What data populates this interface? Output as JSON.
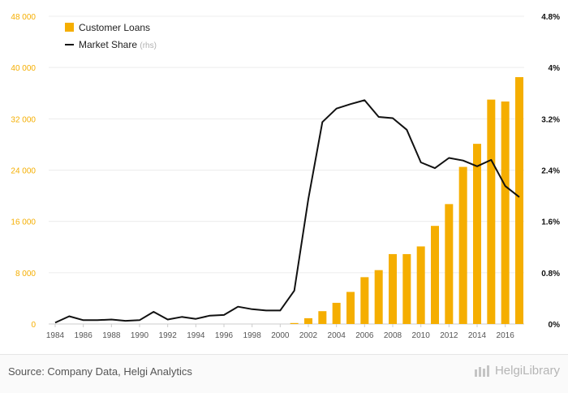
{
  "chart_data": {
    "type": "bar+line",
    "x": [
      1984,
      1985,
      1986,
      1987,
      1988,
      1989,
      1990,
      1991,
      1992,
      1993,
      1994,
      1995,
      1996,
      1997,
      1998,
      1999,
      2000,
      2001,
      2002,
      2003,
      2004,
      2005,
      2006,
      2007,
      2008,
      2009,
      2010,
      2011,
      2012,
      2013,
      2014,
      2015,
      2016,
      2017
    ],
    "x_tick_labels": [
      "1984",
      "1986",
      "1988",
      "1990",
      "1992",
      "1994",
      "1996",
      "1998",
      "2000",
      "2002",
      "2004",
      "2006",
      "2008",
      "2010",
      "2012",
      "2014",
      "2016"
    ],
    "series": [
      {
        "name": "Customer Loans",
        "type": "bar",
        "axis": "left",
        "color": "#f5ae00",
        "values": [
          0,
          0,
          0,
          0,
          0,
          0,
          0,
          0,
          0,
          0,
          0,
          0,
          0,
          0,
          0,
          0,
          0,
          150,
          900,
          2000,
          3300,
          5000,
          7300,
          8400,
          10900,
          10900,
          12100,
          15300,
          18700,
          24500,
          28100,
          35000,
          34700,
          38500
        ]
      },
      {
        "name": "Market Share",
        "name_suffix": "(rhs)",
        "type": "line",
        "axis": "right",
        "color": "#111111",
        "values": [
          0.02,
          0.12,
          0.06,
          0.06,
          0.07,
          0.05,
          0.06,
          0.19,
          0.07,
          0.11,
          0.08,
          0.13,
          0.14,
          0.27,
          0.23,
          0.21,
          0.21,
          0.52,
          1.95,
          3.15,
          3.36,
          3.43,
          3.49,
          3.23,
          3.21,
          3.03,
          2.52,
          2.43,
          2.59,
          2.55,
          2.46,
          2.56,
          2.15,
          1.98
        ]
      }
    ],
    "left_axis": {
      "min": 0,
      "max": 48000,
      "ticks": [
        "0",
        "8 000",
        "16 000",
        "24 000",
        "32 000",
        "40 000",
        "48 000"
      ],
      "color": "#f5ae00"
    },
    "right_axis": {
      "min": 0,
      "max": 4.8,
      "ticks": [
        "0%",
        "0.8%",
        "1.6%",
        "2.4%",
        "3.2%",
        "4%",
        "4.8%"
      ],
      "color": "#111111"
    },
    "grid": "horizontal",
    "legend_position": "top-left"
  },
  "footer": {
    "source": "Source: Company Data, Helgi Analytics",
    "brand": "HelgiLibrary"
  }
}
